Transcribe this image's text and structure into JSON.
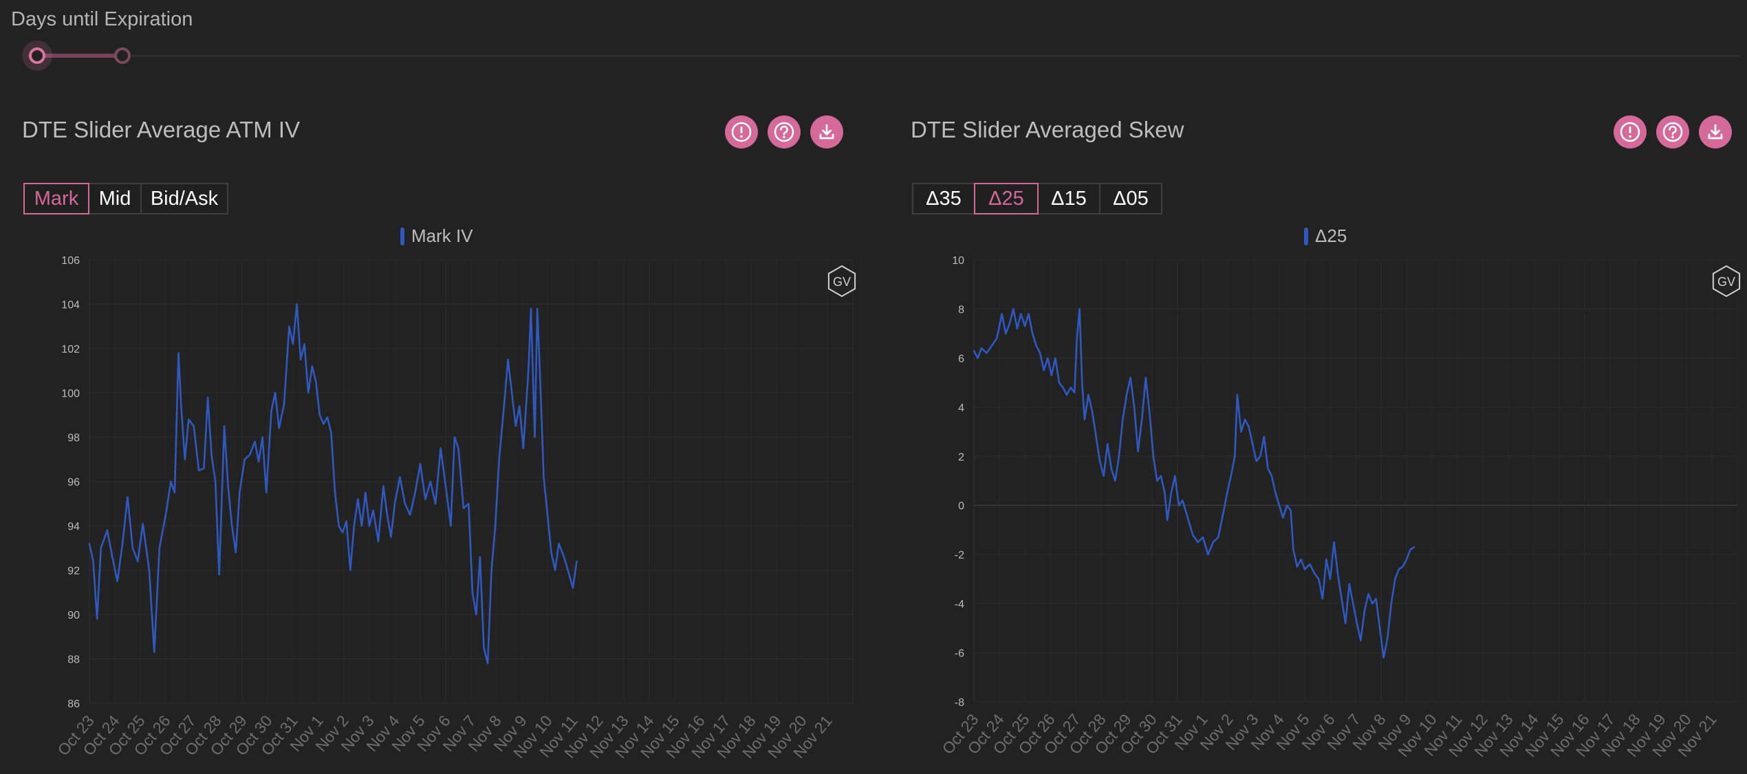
{
  "slider": {
    "title": "Days until Expiration",
    "min_position": 0.0,
    "max_position": 0.052
  },
  "icons": [
    "alert-icon",
    "help-icon",
    "download-icon"
  ],
  "colors": {
    "accent": "#d4699a",
    "series": "#2f58c0",
    "background": "#222222"
  },
  "watermark": "GV",
  "panels": [
    {
      "title": "DTE Slider Average ATM IV",
      "buttons": [
        "Mark",
        "Mid",
        "Bid/Ask"
      ],
      "active_button": "Mark",
      "legend": "Mark IV"
    },
    {
      "title": "DTE Slider Averaged Skew",
      "buttons": [
        "Δ35",
        "Δ25",
        "Δ15",
        "Δ05"
      ],
      "active_button": "Δ25",
      "legend": "Δ25"
    }
  ],
  "chart_data": [
    {
      "type": "line",
      "title": "DTE Slider Average ATM IV",
      "categories": [
        "Oct 23",
        "Oct 24",
        "Oct 25",
        "Oct 26",
        "Oct 27",
        "Oct 28",
        "Oct 29",
        "Oct 30",
        "Oct 31",
        "Nov 1",
        "Nov 2",
        "Nov 3",
        "Nov 4",
        "Nov 5",
        "Nov 6",
        "Nov 7",
        "Nov 8",
        "Nov 9",
        "Nov 10",
        "Nov 11",
        "Nov 12",
        "Nov 13",
        "Nov 14",
        "Nov 15",
        "Nov 16",
        "Nov 17",
        "Nov 18",
        "Nov 19",
        "Nov 20",
        "Nov 21"
      ],
      "ylim": [
        86,
        106
      ],
      "yticks": [
        86,
        88,
        90,
        92,
        94,
        96,
        98,
        100,
        102,
        104,
        106
      ],
      "series": [
        {
          "name": "Mark IV",
          "points": [
            [
              0,
              93.2
            ],
            [
              0.15,
              92.4
            ],
            [
              0.3,
              89.8
            ],
            [
              0.45,
              93.0
            ],
            [
              0.7,
              93.8
            ],
            [
              0.9,
              92.6
            ],
            [
              1.1,
              91.5
            ],
            [
              1.3,
              93.2
            ],
            [
              1.5,
              95.3
            ],
            [
              1.7,
              93.0
            ],
            [
              1.9,
              92.4
            ],
            [
              2.1,
              94.1
            ],
            [
              2.35,
              92.0
            ],
            [
              2.55,
              88.3
            ],
            [
              2.75,
              93.0
            ],
            [
              3.0,
              94.5
            ],
            [
              3.2,
              96.0
            ],
            [
              3.35,
              95.5
            ],
            [
              3.5,
              101.8
            ],
            [
              3.6,
              99.5
            ],
            [
              3.75,
              97.0
            ],
            [
              3.9,
              98.8
            ],
            [
              4.1,
              98.5
            ],
            [
              4.3,
              96.5
            ],
            [
              4.5,
              96.6
            ],
            [
              4.65,
              99.8
            ],
            [
              4.8,
              97.2
            ],
            [
              4.95,
              96.0
            ],
            [
              5.1,
              91.8
            ],
            [
              5.3,
              98.5
            ],
            [
              5.45,
              95.8
            ],
            [
              5.6,
              94.0
            ],
            [
              5.75,
              92.8
            ],
            [
              5.9,
              95.5
            ],
            [
              6.1,
              97.0
            ],
            [
              6.3,
              97.2
            ],
            [
              6.5,
              97.8
            ],
            [
              6.65,
              96.9
            ],
            [
              6.8,
              98.0
            ],
            [
              6.95,
              95.5
            ],
            [
              7.15,
              99.2
            ],
            [
              7.3,
              100.0
            ],
            [
              7.45,
              98.4
            ],
            [
              7.65,
              99.5
            ],
            [
              7.85,
              103.0
            ],
            [
              8.0,
              102.2
            ],
            [
              8.15,
              104.0
            ],
            [
              8.3,
              101.5
            ],
            [
              8.45,
              102.2
            ],
            [
              8.6,
              100.0
            ],
            [
              8.75,
              101.2
            ],
            [
              8.9,
              100.5
            ],
            [
              9.05,
              99.0
            ],
            [
              9.2,
              98.6
            ],
            [
              9.35,
              98.9
            ],
            [
              9.5,
              98.2
            ],
            [
              9.65,
              95.5
            ],
            [
              9.8,
              94.0
            ],
            [
              9.95,
              93.7
            ],
            [
              10.1,
              94.2
            ],
            [
              10.25,
              92.0
            ],
            [
              10.4,
              94.0
            ],
            [
              10.55,
              95.2
            ],
            [
              10.7,
              94.0
            ],
            [
              10.85,
              95.5
            ],
            [
              11.0,
              94.0
            ],
            [
              11.15,
              94.7
            ],
            [
              11.35,
              93.3
            ],
            [
              11.55,
              95.8
            ],
            [
              11.7,
              94.5
            ],
            [
              11.85,
              93.5
            ],
            [
              12.0,
              95.0
            ],
            [
              12.2,
              96.2
            ],
            [
              12.4,
              95.0
            ],
            [
              12.6,
              94.5
            ],
            [
              12.8,
              95.5
            ],
            [
              13.0,
              96.8
            ],
            [
              13.2,
              95.2
            ],
            [
              13.4,
              96.0
            ],
            [
              13.6,
              95.0
            ],
            [
              13.8,
              97.5
            ],
            [
              14.0,
              95.8
            ],
            [
              14.2,
              94.0
            ],
            [
              14.35,
              98.0
            ],
            [
              14.5,
              97.5
            ],
            [
              14.7,
              94.8
            ],
            [
              14.9,
              95.0
            ],
            [
              15.05,
              91.0
            ],
            [
              15.2,
              90.0
            ],
            [
              15.35,
              92.6
            ],
            [
              15.5,
              88.5
            ],
            [
              15.65,
              87.8
            ],
            [
              15.8,
              92.0
            ],
            [
              15.95,
              94.0
            ],
            [
              16.1,
              97.0
            ],
            [
              16.3,
              99.5
            ],
            [
              16.45,
              101.5
            ],
            [
              16.6,
              100.0
            ],
            [
              16.75,
              98.5
            ],
            [
              16.9,
              99.4
            ],
            [
              17.05,
              97.5
            ],
            [
              17.25,
              101.0
            ],
            [
              17.35,
              103.8
            ],
            [
              17.5,
              98.0
            ],
            [
              17.6,
              103.8
            ],
            [
              17.7,
              101.0
            ],
            [
              17.85,
              96.2
            ],
            [
              18.0,
              94.5
            ],
            [
              18.15,
              92.8
            ],
            [
              18.3,
              92.0
            ],
            [
              18.45,
              93.2
            ],
            [
              18.65,
              92.6
            ],
            [
              18.85,
              91.8
            ],
            [
              19.0,
              91.2
            ],
            [
              19.15,
              92.4
            ]
          ]
        }
      ]
    },
    {
      "type": "line",
      "title": "DTE Slider Averaged Skew",
      "categories": [
        "Oct 23",
        "Oct 24",
        "Oct 25",
        "Oct 26",
        "Oct 27",
        "Oct 28",
        "Oct 29",
        "Oct 30",
        "Oct 31",
        "Nov 1",
        "Nov 2",
        "Nov 3",
        "Nov 4",
        "Nov 5",
        "Nov 6",
        "Nov 7",
        "Nov 8",
        "Nov 9",
        "Nov 10",
        "Nov 11",
        "Nov 12",
        "Nov 13",
        "Nov 14",
        "Nov 15",
        "Nov 16",
        "Nov 17",
        "Nov 18",
        "Nov 19",
        "Nov 20",
        "Nov 21"
      ],
      "ylim": [
        -8,
        10
      ],
      "yticks": [
        -8,
        -6,
        -4,
        -2,
        0,
        2,
        4,
        6,
        8,
        10
      ],
      "series": [
        {
          "name": "Δ25",
          "points": [
            [
              0,
              6.3
            ],
            [
              0.15,
              6.0
            ],
            [
              0.3,
              6.4
            ],
            [
              0.5,
              6.2
            ],
            [
              0.7,
              6.5
            ],
            [
              0.9,
              6.8
            ],
            [
              1.1,
              7.8
            ],
            [
              1.25,
              7.0
            ],
            [
              1.4,
              7.4
            ],
            [
              1.55,
              8.0
            ],
            [
              1.7,
              7.2
            ],
            [
              1.85,
              7.8
            ],
            [
              2.0,
              7.3
            ],
            [
              2.15,
              7.8
            ],
            [
              2.3,
              7.0
            ],
            [
              2.45,
              6.5
            ],
            [
              2.6,
              6.2
            ],
            [
              2.75,
              5.5
            ],
            [
              2.9,
              6.0
            ],
            [
              3.05,
              5.3
            ],
            [
              3.2,
              6.0
            ],
            [
              3.35,
              5.0
            ],
            [
              3.5,
              4.8
            ],
            [
              3.65,
              4.5
            ],
            [
              3.8,
              4.8
            ],
            [
              3.95,
              4.6
            ],
            [
              4.05,
              6.8
            ],
            [
              4.15,
              8.0
            ],
            [
              4.25,
              5.0
            ],
            [
              4.35,
              3.5
            ],
            [
              4.5,
              4.5
            ],
            [
              4.65,
              3.8
            ],
            [
              4.8,
              2.8
            ],
            [
              4.95,
              1.8
            ],
            [
              5.1,
              1.2
            ],
            [
              5.25,
              2.5
            ],
            [
              5.4,
              1.5
            ],
            [
              5.55,
              1.0
            ],
            [
              5.7,
              2.0
            ],
            [
              5.85,
              3.5
            ],
            [
              6.0,
              4.5
            ],
            [
              6.15,
              5.2
            ],
            [
              6.3,
              4.0
            ],
            [
              6.45,
              2.2
            ],
            [
              6.6,
              3.5
            ],
            [
              6.75,
              5.2
            ],
            [
              6.9,
              3.8
            ],
            [
              7.05,
              2.0
            ],
            [
              7.2,
              1.0
            ],
            [
              7.35,
              1.2
            ],
            [
              7.5,
              0.5
            ],
            [
              7.6,
              -0.6
            ],
            [
              7.75,
              0.5
            ],
            [
              7.9,
              1.2
            ],
            [
              8.05,
              0.0
            ],
            [
              8.2,
              0.2
            ],
            [
              8.4,
              -0.5
            ],
            [
              8.6,
              -1.2
            ],
            [
              8.8,
              -1.5
            ],
            [
              9.0,
              -1.3
            ],
            [
              9.2,
              -2.0
            ],
            [
              9.4,
              -1.5
            ],
            [
              9.6,
              -1.3
            ],
            [
              9.8,
              -0.3
            ],
            [
              9.95,
              0.5
            ],
            [
              10.1,
              1.2
            ],
            [
              10.25,
              2.0
            ],
            [
              10.35,
              4.5
            ],
            [
              10.5,
              3.0
            ],
            [
              10.65,
              3.5
            ],
            [
              10.8,
              3.2
            ],
            [
              10.95,
              2.5
            ],
            [
              11.1,
              1.8
            ],
            [
              11.25,
              2.0
            ],
            [
              11.4,
              2.8
            ],
            [
              11.55,
              1.5
            ],
            [
              11.7,
              1.2
            ],
            [
              11.85,
              0.5
            ],
            [
              12.0,
              0.0
            ],
            [
              12.15,
              -0.5
            ],
            [
              12.3,
              0.0
            ],
            [
              12.45,
              -0.2
            ],
            [
              12.55,
              -1.8
            ],
            [
              12.7,
              -2.5
            ],
            [
              12.85,
              -2.2
            ],
            [
              13.0,
              -2.6
            ],
            [
              13.2,
              -2.4
            ],
            [
              13.4,
              -2.8
            ],
            [
              13.55,
              -3.0
            ],
            [
              13.7,
              -3.8
            ],
            [
              13.85,
              -2.2
            ],
            [
              14.0,
              -3.0
            ],
            [
              14.15,
              -1.5
            ],
            [
              14.3,
              -2.8
            ],
            [
              14.45,
              -3.8
            ],
            [
              14.6,
              -4.8
            ],
            [
              14.75,
              -3.2
            ],
            [
              14.9,
              -4.0
            ],
            [
              15.05,
              -4.8
            ],
            [
              15.2,
              -5.5
            ],
            [
              15.35,
              -4.3
            ],
            [
              15.5,
              -3.6
            ],
            [
              15.65,
              -4.0
            ],
            [
              15.8,
              -3.8
            ],
            [
              15.95,
              -5.0
            ],
            [
              16.1,
              -6.2
            ],
            [
              16.25,
              -5.4
            ],
            [
              16.4,
              -4.0
            ],
            [
              16.55,
              -3.0
            ],
            [
              16.7,
              -2.6
            ],
            [
              16.85,
              -2.5
            ],
            [
              17.0,
              -2.2
            ],
            [
              17.15,
              -1.8
            ],
            [
              17.3,
              -1.7
            ]
          ]
        }
      ]
    }
  ]
}
